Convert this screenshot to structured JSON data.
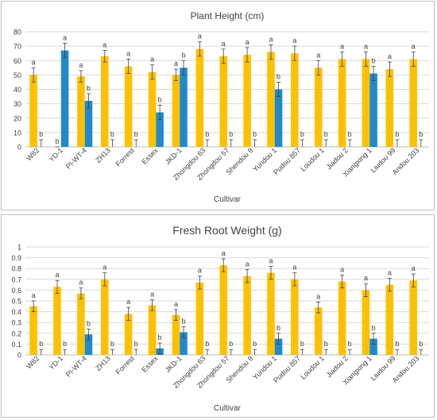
{
  "colors": {
    "yellow": "#FFC000",
    "blue": "#1F8ACB",
    "grid": "#d9d9d9",
    "axis": "#bfbfbf",
    "text": "#404040"
  },
  "chart_data": [
    {
      "type": "bar",
      "title": "Plant Height (cm)",
      "xlabel": "Cultivar",
      "ylabel": "",
      "ylim": [
        0,
        80
      ],
      "yticks": [
        "0",
        "10",
        "20",
        "30",
        "40",
        "50",
        "60",
        "70",
        "80"
      ],
      "grid": true,
      "legend": "none",
      "categories": [
        "W82",
        "YD-1",
        "PI-WT-4",
        "ZH13",
        "Forrest",
        "Essex",
        "JKD-1",
        "Zhongdou 63",
        "Zhongdou 57",
        "Shendou 9",
        "Yundou 1",
        "Pudou 857",
        "Loudou 1",
        "Jiadou 2",
        "Xiangxing 1",
        "Liudou 99",
        "Andou 203"
      ],
      "series": [
        {
          "color": "#FFC000",
          "values": [
            50,
            0,
            49,
            63,
            56,
            52,
            50,
            68,
            63,
            64,
            66,
            65,
            55,
            61,
            61,
            54,
            61
          ],
          "errors": [
            5,
            0,
            4,
            4,
            5,
            5,
            4,
            5,
            5,
            5,
            5,
            5,
            5,
            5,
            5,
            5,
            5
          ],
          "labels": [
            "a",
            "b",
            "a",
            "a",
            "a",
            "a",
            "a",
            "a",
            "a",
            "a",
            "a",
            "a",
            "a",
            "a",
            "a",
            "a",
            "a"
          ]
        },
        {
          "color": "#1F8ACB",
          "values": [
            0,
            67,
            32,
            0,
            0,
            24,
            55,
            0,
            0,
            0,
            40,
            0,
            0,
            0,
            51,
            0,
            0
          ],
          "errors": [
            5,
            5,
            5,
            5,
            5,
            5,
            5,
            5,
            5,
            5,
            5,
            5,
            5,
            5,
            5,
            5,
            5
          ],
          "labels": [
            "b",
            "a",
            "b",
            "b",
            "b",
            "b",
            "b",
            "b",
            "b",
            "b",
            "b",
            "b",
            "b",
            "b",
            "b",
            "b",
            "b"
          ]
        }
      ]
    },
    {
      "type": "bar",
      "title": "Fresh Root Weight (g)",
      "xlabel": "Cultivar",
      "ylabel": "",
      "ylim": [
        0,
        1
      ],
      "yticks": [
        "0",
        "0.1",
        "0.2",
        "0.3",
        "0.4",
        "0.5",
        "0.6",
        "0.7",
        "0.8",
        "0.9",
        "1"
      ],
      "grid": true,
      "legend": "none",
      "categories": [
        "W82",
        "YD-1",
        "PI-WT-4",
        "ZH13",
        "Forrest",
        "Essex",
        "JKD-1",
        "Zhongdou 63",
        "Zhongdou 57",
        "Shendou 9",
        "Yundou 1",
        "Pudou 857",
        "Loudou 1",
        "Jiadou 2",
        "Xiangxing 1",
        "Liudou 99",
        "Andou 203"
      ],
      "series": [
        {
          "color": "#FFC000",
          "values": [
            0.45,
            0.63,
            0.57,
            0.7,
            0.38,
            0.46,
            0.37,
            0.67,
            0.83,
            0.73,
            0.76,
            0.7,
            0.44,
            0.68,
            0.6,
            0.65,
            0.69
          ],
          "errors": [
            0.05,
            0.06,
            0.05,
            0.06,
            0.06,
            0.05,
            0.05,
            0.06,
            0.06,
            0.06,
            0.06,
            0.06,
            0.05,
            0.06,
            0.06,
            0.06,
            0.06
          ],
          "labels": [
            "a",
            "a",
            "a",
            "a",
            "a",
            "a",
            "a",
            "a",
            "a",
            "a",
            "a",
            "a",
            "a",
            "a",
            "a",
            "a",
            "a"
          ]
        },
        {
          "color": "#1F8ACB",
          "values": [
            0,
            0,
            0.19,
            0,
            0,
            0.06,
            0.21,
            0,
            0,
            0,
            0.15,
            0,
            0,
            0,
            0.15,
            0,
            0
          ],
          "errors": [
            0.05,
            0.05,
            0.05,
            0.05,
            0.05,
            0.05,
            0.05,
            0.05,
            0.05,
            0.05,
            0.05,
            0.05,
            0.05,
            0.05,
            0.05,
            0.05,
            0.05
          ],
          "labels": [
            "b",
            "b",
            "b",
            "b",
            "b",
            "b",
            "b",
            "b",
            "b",
            "b",
            "b",
            "b",
            "b",
            "b",
            "b",
            "b",
            "b"
          ]
        }
      ]
    }
  ]
}
